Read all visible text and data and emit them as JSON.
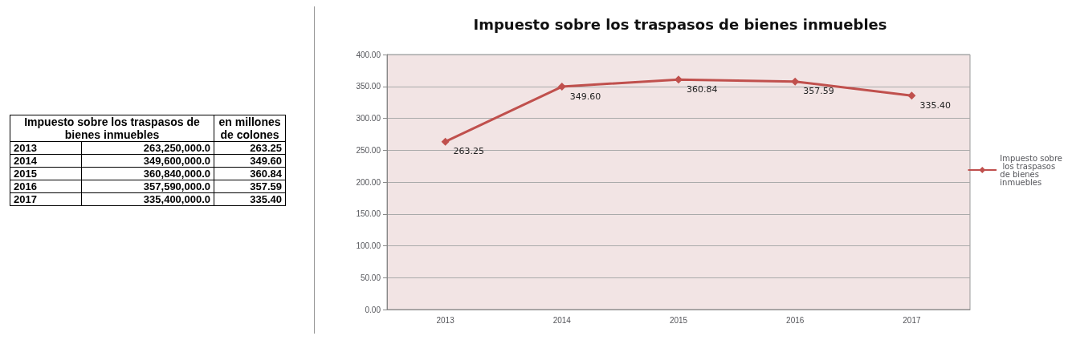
{
  "chart_data": {
    "type": "line",
    "title": "Impuesto sobre los traspasos de bienes inmuebles",
    "categories": [
      "2013",
      "2014",
      "2015",
      "2016",
      "2017"
    ],
    "series": [
      {
        "name": "Impuesto sobre los traspasos de bienes inmuebles",
        "color": "#c0504d",
        "values": [
          263.25,
          349.6,
          360.84,
          357.59,
          335.4
        ],
        "value_labels": [
          "263.25",
          "349.60",
          "360.84",
          "357.59",
          "335.40"
        ]
      }
    ],
    "ylim": [
      0,
      400
    ],
    "yticks": [
      {
        "value": 0,
        "label": "0.00"
      },
      {
        "value": 50,
        "label": "50.00"
      },
      {
        "value": 100,
        "label": "100.00"
      },
      {
        "value": 150,
        "label": "150.00"
      },
      {
        "value": 200,
        "label": "200.00"
      },
      {
        "value": 250,
        "label": "250.00"
      },
      {
        "value": 300,
        "label": "300.00"
      },
      {
        "value": 350,
        "label": "350.00"
      },
      {
        "value": 400,
        "label": "400.00"
      }
    ],
    "grid": "y",
    "legend": "right",
    "marker": "diamond",
    "line_style": "solid",
    "annotations": [
      "Impuesto sobre los traspasos de bienes inmuebles",
      "en millones de colones",
      "263,250,000.0",
      "349,600,000.0",
      "360,840,000.0",
      "357,590,000.0",
      "335,400,000.0"
    ]
  }
}
